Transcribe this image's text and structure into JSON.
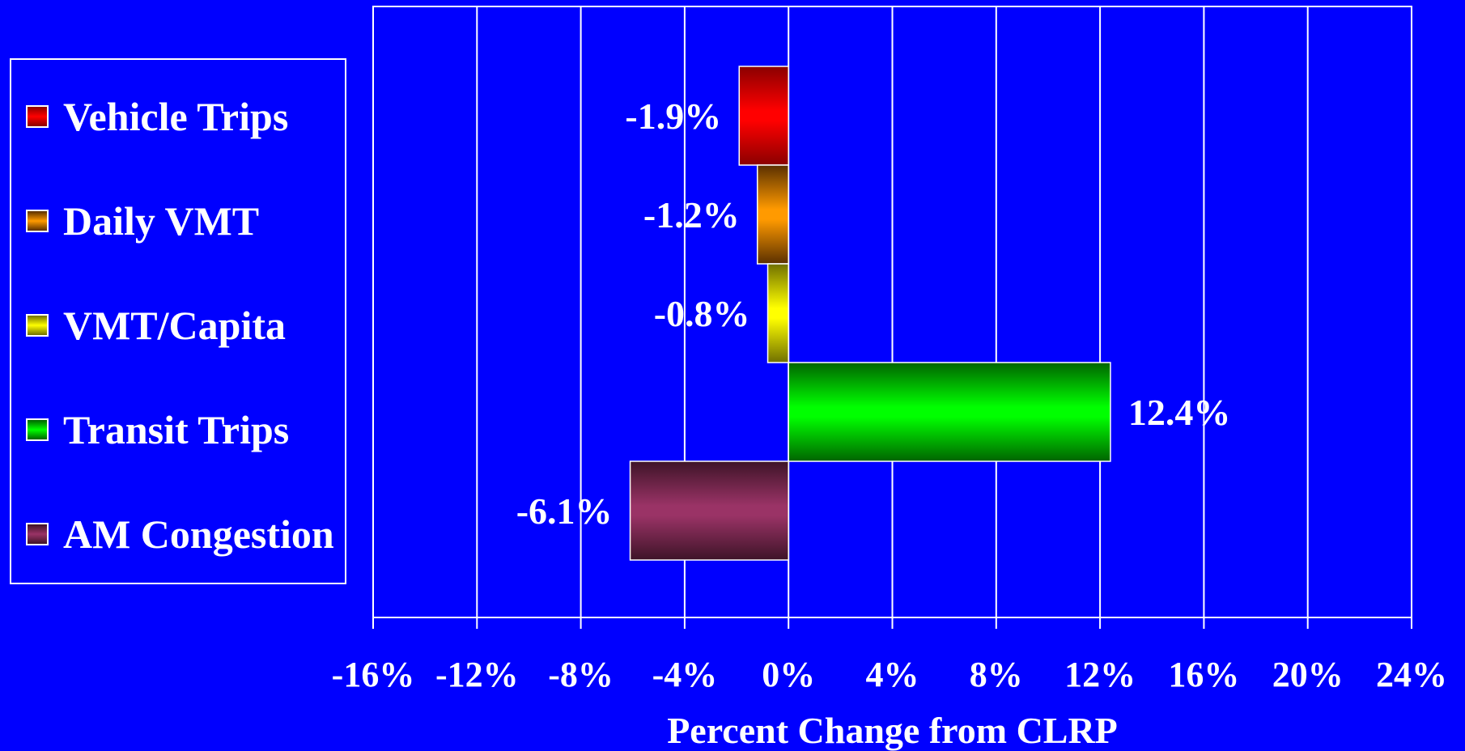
{
  "chart_data": {
    "type": "bar",
    "orientation": "horizontal",
    "xlabel": "Percent Change from CLRP",
    "xlim": [
      -16,
      24
    ],
    "xticks": [
      -16,
      -12,
      -8,
      -4,
      0,
      4,
      8,
      12,
      16,
      20,
      24
    ],
    "tick_suffix": "%",
    "grid": "vertical",
    "legend_position": "left",
    "series": [
      {
        "name": "Vehicle Trips",
        "value": -1.9,
        "label": "-1.9%",
        "color": "#ff0000",
        "dark": "#8a0000"
      },
      {
        "name": "Daily VMT",
        "value": -1.2,
        "label": "-1.2%",
        "color": "#ff9a00",
        "dark": "#5a3000"
      },
      {
        "name": "VMT/Capita",
        "value": -0.8,
        "label": "-0.8%",
        "color": "#ffff00",
        "dark": "#707000"
      },
      {
        "name": "Transit Trips",
        "value": 12.4,
        "label": "12.4%",
        "color": "#00ff00",
        "dark": "#006400"
      },
      {
        "name": "AM Congestion",
        "value": -6.1,
        "label": "-6.1%",
        "color": "#9a3366",
        "dark": "#3e1428"
      }
    ]
  }
}
